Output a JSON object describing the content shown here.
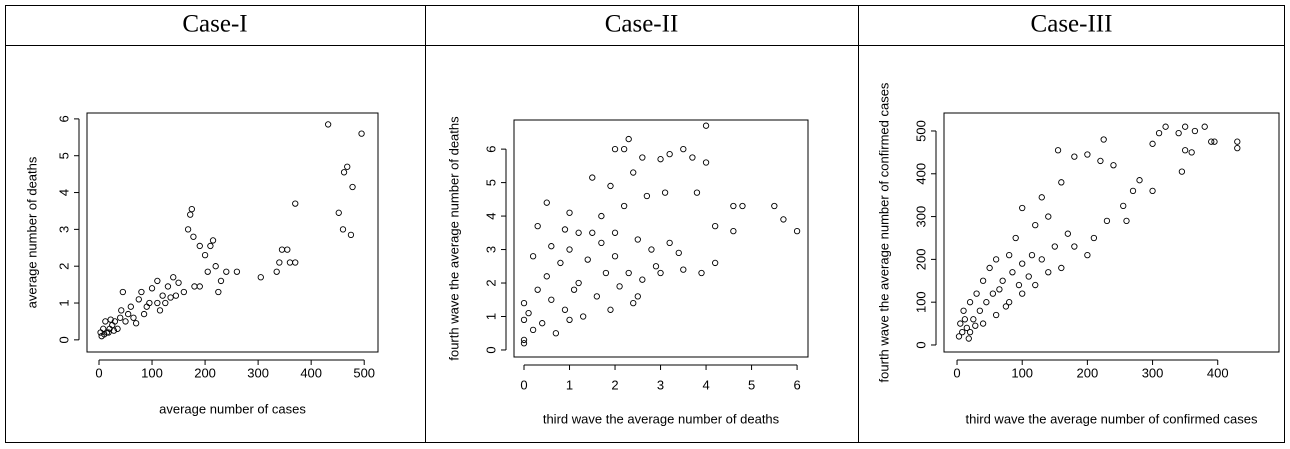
{
  "chart_data": [
    {
      "type": "scatter",
      "title": "Case-I",
      "x_label": "average number of cases",
      "y_label": "average number of deaths",
      "xlim": [
        -22.6,
        526
      ],
      "ylim": [
        -0.33,
        6.16
      ],
      "xticks": [
        0,
        100,
        200,
        300,
        400,
        500
      ],
      "yticks": [
        0,
        1,
        2,
        3,
        4,
        5,
        6
      ],
      "color": "#000000",
      "x": [
        432,
        495,
        468,
        462,
        478,
        370,
        452,
        460,
        475,
        175,
        172,
        168,
        178,
        190,
        210,
        215,
        200,
        220,
        205,
        240,
        260,
        230,
        190,
        180,
        225,
        305,
        340,
        345,
        355,
        360,
        370,
        335,
        150,
        140,
        130,
        120,
        110,
        100,
        95,
        80,
        75,
        60,
        55,
        45,
        40,
        30,
        25,
        20,
        15,
        10,
        5,
        8,
        12,
        18,
        35,
        50,
        65,
        85,
        90,
        110,
        125,
        135,
        145,
        160,
        115,
        70,
        28,
        3,
        22,
        42
      ],
      "values": [
        5.85,
        5.6,
        4.7,
        4.55,
        4.15,
        3.7,
        3.45,
        3.0,
        2.85,
        3.55,
        3.4,
        3.0,
        2.8,
        2.55,
        2.55,
        2.7,
        2.3,
        2.0,
        1.85,
        1.85,
        1.85,
        1.6,
        1.45,
        1.45,
        1.3,
        1.7,
        2.1,
        2.45,
        2.45,
        2.1,
        2.1,
        1.85,
        1.55,
        1.7,
        1.45,
        1.2,
        1.6,
        1.4,
        1.0,
        1.3,
        1.1,
        0.9,
        0.7,
        1.3,
        0.6,
        0.5,
        0.4,
        0.3,
        0.2,
        0.15,
        0.1,
        0.3,
        0.5,
        0.2,
        0.3,
        0.5,
        0.6,
        0.7,
        0.9,
        1.0,
        1.0,
        1.15,
        1.2,
        1.3,
        0.8,
        0.45,
        0.25,
        0.2,
        0.55,
        0.8
      ]
    },
    {
      "type": "scatter",
      "title": "Case-II",
      "x_label": "third wave the average number of deaths",
      "y_label": "fourth wave the average number of deaths",
      "xlim": [
        -0.22,
        6.24
      ],
      "ylim": [
        -0.21,
        6.87
      ],
      "xticks": [
        0,
        1,
        2,
        3,
        4,
        5,
        6
      ],
      "yticks": [
        0,
        1,
        2,
        3,
        4,
        5,
        6
      ],
      "color": "#000000",
      "x": [
        4.0,
        2.3,
        2.2,
        2.0,
        3.5,
        2.6,
        3.0,
        3.2,
        3.7,
        4.0,
        1.5,
        2.4,
        1.9,
        2.7,
        3.1,
        3.8,
        4.6,
        4.8,
        5.5,
        5.7,
        6.0,
        4.6,
        4.2,
        4.2,
        3.9,
        3.5,
        3.0,
        2.6,
        2.5,
        0.5,
        0.3,
        0.9,
        1.0,
        1.2,
        1.5,
        1.7,
        2.0,
        2.5,
        0.2,
        0.0,
        0.0,
        0.0,
        0.0,
        0.1,
        0.2,
        0.3,
        0.4,
        0.5,
        0.6,
        0.7,
        0.8,
        0.9,
        1.0,
        1.0,
        1.2,
        1.3,
        1.4,
        1.6,
        1.8,
        1.9,
        2.0,
        2.1,
        2.3,
        2.4,
        2.8,
        2.9,
        3.2,
        3.4,
        1.1,
        0.6,
        1.7,
        2.2
      ],
      "values": [
        6.7,
        6.3,
        6.0,
        6.0,
        6.0,
        5.75,
        5.7,
        5.85,
        5.75,
        5.6,
        5.15,
        5.3,
        4.9,
        4.6,
        4.7,
        4.7,
        4.3,
        4.3,
        4.3,
        3.9,
        3.55,
        3.55,
        3.7,
        2.6,
        2.3,
        2.4,
        2.3,
        2.1,
        1.6,
        4.4,
        3.7,
        3.6,
        4.1,
        3.5,
        3.5,
        3.2,
        3.5,
        3.3,
        2.8,
        1.4,
        0.9,
        0.3,
        0.2,
        1.1,
        0.6,
        1.8,
        0.8,
        2.2,
        1.5,
        0.5,
        2.6,
        1.2,
        3.0,
        0.9,
        2.0,
        1.0,
        2.7,
        1.6,
        2.3,
        1.2,
        2.8,
        1.9,
        2.3,
        1.4,
        3.0,
        2.5,
        3.2,
        2.9,
        1.8,
        3.1,
        4.0,
        4.3
      ]
    },
    {
      "type": "scatter",
      "title": "Case-III",
      "x_label": "third wave the average number of confirmed cases",
      "y_label": "fourth wave the average number of confirmed cases",
      "xlim": [
        -20,
        494
      ],
      "ylim": [
        -16.4,
        542
      ],
      "xticks": [
        0,
        100,
        200,
        300,
        400
      ],
      "yticks": [
        0,
        100,
        200,
        300,
        400,
        500
      ],
      "color": "#000000",
      "x": [
        430,
        430,
        395,
        390,
        380,
        365,
        350,
        340,
        320,
        310,
        300,
        350,
        360,
        345,
        300,
        280,
        270,
        255,
        240,
        220,
        225,
        200,
        180,
        155,
        160,
        130,
        140,
        120,
        170,
        180,
        200,
        210,
        230,
        260,
        100,
        90,
        80,
        60,
        50,
        40,
        30,
        20,
        10,
        5,
        3,
        15,
        25,
        35,
        45,
        55,
        70,
        85,
        100,
        110,
        130,
        150,
        60,
        40,
        20,
        80,
        100,
        120,
        140,
        160,
        8,
        12,
        18,
        28,
        65,
        75,
        95,
        115
      ],
      "values": [
        475,
        460,
        475,
        475,
        510,
        500,
        510,
        495,
        510,
        495,
        470,
        455,
        450,
        405,
        360,
        385,
        360,
        325,
        420,
        430,
        480,
        445,
        440,
        455,
        380,
        345,
        300,
        280,
        260,
        230,
        210,
        250,
        290,
        290,
        320,
        250,
        210,
        200,
        180,
        150,
        120,
        100,
        80,
        50,
        20,
        40,
        60,
        80,
        100,
        120,
        150,
        170,
        190,
        160,
        200,
        230,
        70,
        50,
        30,
        100,
        120,
        140,
        170,
        180,
        30,
        60,
        15,
        45,
        130,
        90,
        140,
        210
      ]
    }
  ]
}
